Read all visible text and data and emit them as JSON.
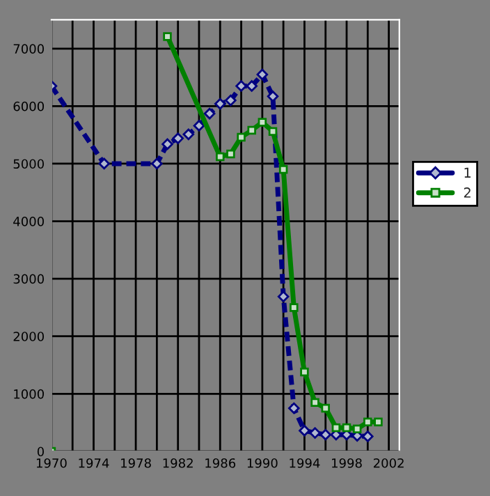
{
  "chart_data": {
    "type": "line",
    "legend": "right",
    "grid": true,
    "xlim": [
      1970,
      2003
    ],
    "ylim": [
      0,
      7500
    ],
    "xticks": [
      1970,
      {
        "value": 1972,
        "label": null
      },
      1974,
      {
        "value": 1976,
        "label": null
      },
      1978,
      {
        "value": 1980,
        "label": null
      },
      1982,
      {
        "value": 1984,
        "label": null
      },
      1986,
      {
        "value": 1988,
        "label": null
      },
      1990,
      {
        "value": 1992,
        "label": null
      },
      1994,
      {
        "value": 1996,
        "label": null
      },
      1998,
      {
        "value": 2000,
        "label": null
      },
      2002
    ],
    "yticks": [
      0,
      1000,
      2000,
      3000,
      4000,
      5000,
      6000,
      7000
    ],
    "series": [
      {
        "name": "1",
        "color": "#000080",
        "marker": "diamond",
        "line_style": "dashed",
        "x": [
          1970,
          1975,
          1980,
          1981,
          1982,
          1983,
          1984,
          1985,
          1986,
          1987,
          1988,
          1989,
          1990,
          1991,
          1992,
          1993,
          1994,
          1995,
          1996,
          1997,
          1998,
          1999,
          2000
        ],
        "values": [
          6350,
          5000,
          5000,
          5340,
          5440,
          5510,
          5660,
          5870,
          6040,
          6100,
          6350,
          6350,
          6550,
          6170,
          2690,
          750,
          360,
          320,
          290,
          290,
          290,
          270,
          260
        ]
      },
      {
        "name": "2",
        "color": "#008000",
        "marker": "square",
        "line_style": "solid",
        "x": [
          1970,
          1971,
          1981,
          1986,
          1987,
          1988,
          1989,
          1990,
          1991,
          1992,
          1993,
          1994,
          1995,
          1996,
          1997,
          1998,
          1999,
          2000,
          2001
        ],
        "values": [
          0,
          null,
          7210,
          5120,
          5170,
          5460,
          5580,
          5720,
          5560,
          4900,
          2500,
          1380,
          850,
          750,
          410,
          410,
          390,
          510,
          510
        ]
      }
    ]
  }
}
